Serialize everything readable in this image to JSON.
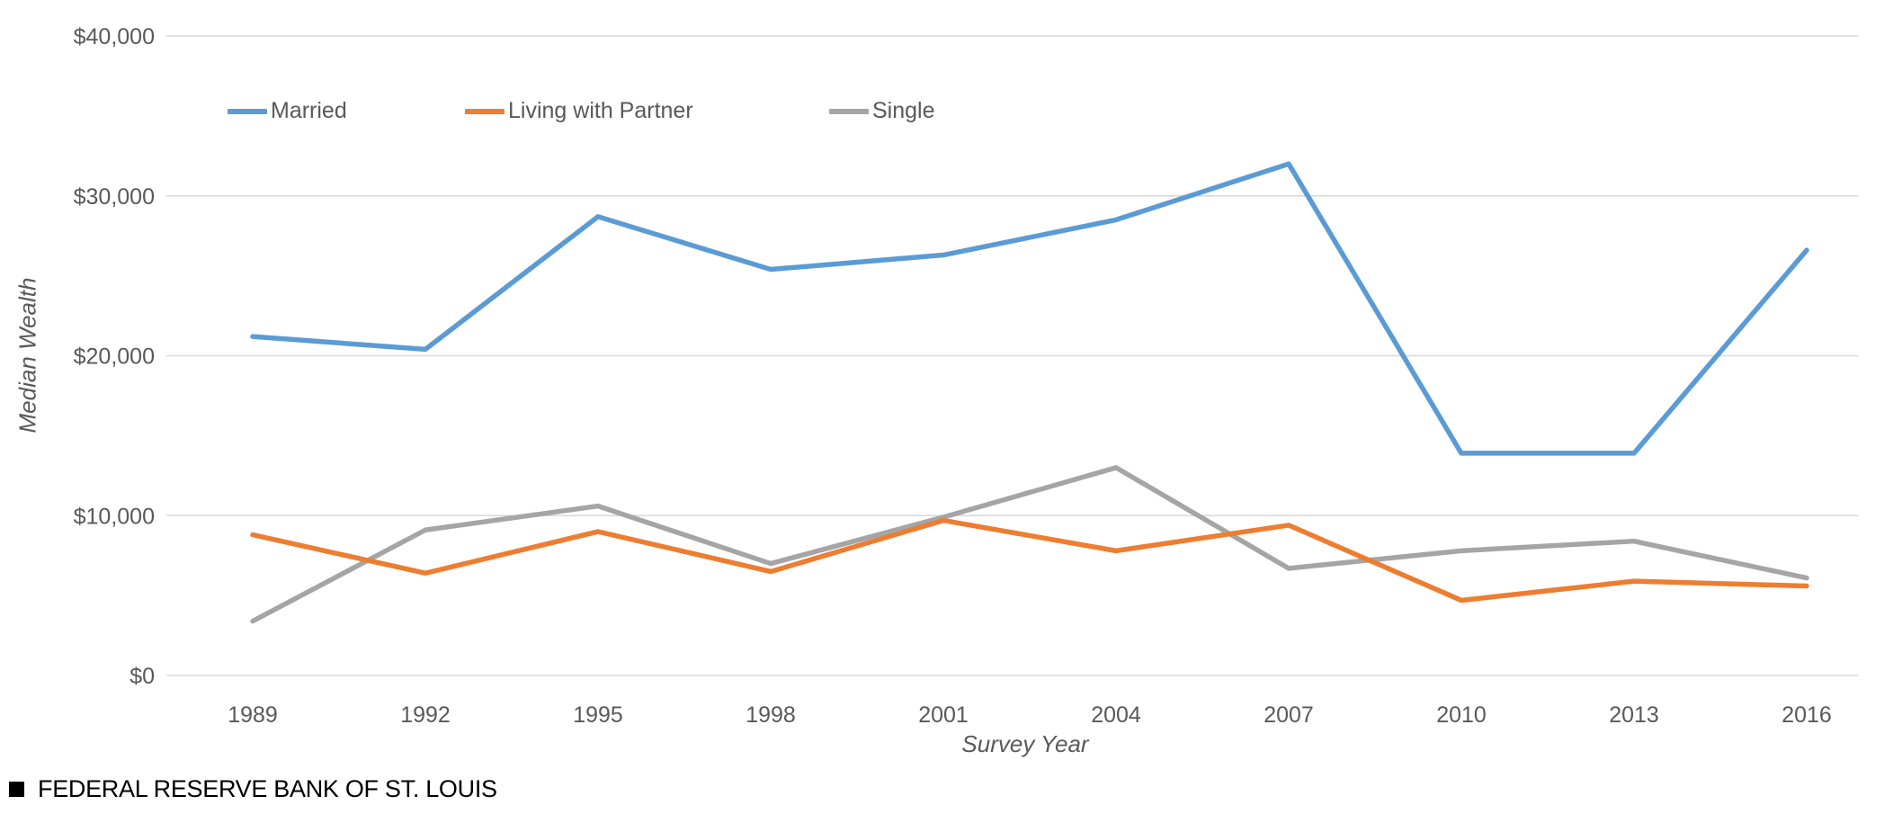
{
  "chart": {
    "y_axis_title": "Median Wealth",
    "x_axis_title": "Survey Year"
  },
  "footer": {
    "text": "FEDERAL RESERVE BANK OF ST. LOUIS"
  },
  "colors": {
    "grid": "#d9d9d9",
    "axis_text": "#595959",
    "footer_text": "#000000"
  },
  "chart_data": {
    "type": "line",
    "x": [
      1989,
      1992,
      1995,
      1998,
      2001,
      2004,
      2007,
      2010,
      2013,
      2016
    ],
    "series": [
      {
        "name": "Married",
        "color": "#5B9BD5",
        "values": [
          21200,
          20400,
          28700,
          25400,
          26300,
          28500,
          32000,
          13900,
          13900,
          26600
        ]
      },
      {
        "name": "Single",
        "color": "#A5A5A5",
        "values": [
          3400,
          9100,
          10600,
          7000,
          9900,
          13000,
          6700,
          7800,
          8400,
          6100
        ]
      },
      {
        "name": "Living with Partner",
        "color": "#ED7D31",
        "values": [
          8800,
          6400,
          9000,
          6500,
          9700,
          7800,
          9400,
          4700,
          5900,
          5600
        ]
      }
    ],
    "legend_order": [
      "Married",
      "Living with Partner",
      "Single"
    ],
    "y_ticks": [
      {
        "label": "$0",
        "value": 0
      },
      {
        "label": "$10,000",
        "value": 10000
      },
      {
        "label": "$20,000",
        "value": 20000
      },
      {
        "label": "$30,000",
        "value": 30000
      },
      {
        "label": "$40,000",
        "value": 40000
      }
    ],
    "ylim": [
      0,
      40000
    ],
    "grid": "horizontal",
    "legend_position": "top-left",
    "title": ""
  }
}
